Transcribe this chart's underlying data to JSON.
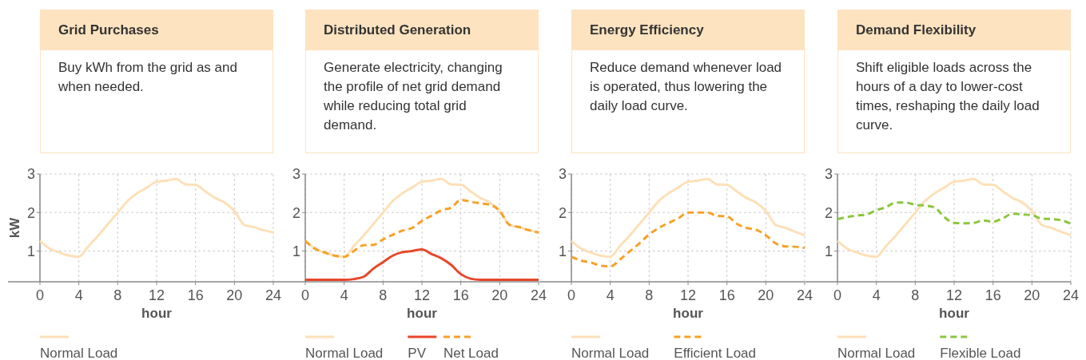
{
  "chart_data": [
    {
      "type": "line",
      "title": "Grid Purchases",
      "subtitle": "Buy kWh from the grid as and when needed.",
      "xlabel": "hour",
      "ylabel": "kW",
      "x": [
        0,
        1,
        2,
        3,
        4,
        5,
        6,
        7,
        8,
        9,
        10,
        11,
        12,
        13,
        14,
        15,
        16,
        17,
        18,
        19,
        20,
        21,
        22,
        23,
        24
      ],
      "xlim": [
        0,
        24
      ],
      "xticks": [
        0,
        4,
        8,
        12,
        16,
        20,
        24
      ],
      "ylim": [
        0.2,
        3
      ],
      "yticks": [
        1,
        2,
        3
      ],
      "grid": true,
      "legend": "bottom",
      "series": [
        {
          "name": "Normal Load",
          "color": "#fde0b8",
          "line_style": "solid",
          "values": [
            1.26,
            1.06,
            0.96,
            0.88,
            0.85,
            1.13,
            1.4,
            1.7,
            2.0,
            2.3,
            2.5,
            2.65,
            2.8,
            2.83,
            2.87,
            2.73,
            2.72,
            2.55,
            2.38,
            2.26,
            2.04,
            1.68,
            1.62,
            1.54,
            1.48
          ]
        }
      ]
    },
    {
      "type": "line",
      "title": "Distributed Generation",
      "subtitle": "Generate electricity, changing the profile of net grid demand while reducing total grid demand.",
      "xlabel": "hour",
      "x": [
        0,
        1,
        2,
        3,
        4,
        5,
        6,
        7,
        8,
        9,
        10,
        11,
        12,
        13,
        14,
        15,
        16,
        17,
        18,
        19,
        20,
        21,
        22,
        23,
        24
      ],
      "xlim": [
        0,
        24
      ],
      "xticks": [
        0,
        4,
        8,
        12,
        16,
        20,
        24
      ],
      "ylim": [
        0.2,
        3
      ],
      "yticks": [
        1,
        2,
        3
      ],
      "grid": true,
      "legend": "bottom",
      "series": [
        {
          "name": "Normal Load",
          "color": "#fde0b8",
          "line_style": "solid",
          "values": [
            1.26,
            1.06,
            0.96,
            0.88,
            0.85,
            1.13,
            1.4,
            1.7,
            2.0,
            2.3,
            2.5,
            2.65,
            2.8,
            2.83,
            2.87,
            2.73,
            2.72,
            2.55,
            2.38,
            2.26,
            2.04,
            1.68,
            1.62,
            1.54,
            1.48
          ]
        },
        {
          "name": "PV",
          "color": "#e8472b",
          "line_style": "solid",
          "values": [
            0.25,
            0.25,
            0.25,
            0.25,
            0.25,
            0.27,
            0.33,
            0.54,
            0.71,
            0.88,
            0.97,
            1.0,
            1.04,
            0.92,
            0.81,
            0.64,
            0.4,
            0.28,
            0.25,
            0.25,
            0.25,
            0.25,
            0.25,
            0.25,
            0.25
          ]
        },
        {
          "name": "Net Load",
          "color": "#f7a128",
          "line_style": "dashed",
          "values": [
            1.26,
            1.06,
            0.96,
            0.88,
            0.85,
            1.0,
            1.15,
            1.16,
            1.3,
            1.42,
            1.53,
            1.6,
            1.78,
            1.92,
            2.06,
            2.12,
            2.33,
            2.28,
            2.24,
            2.2,
            2.04,
            1.68,
            1.62,
            1.54,
            1.48
          ]
        }
      ]
    },
    {
      "type": "line",
      "title": "Energy Efficiency",
      "subtitle": "Reduce demand whenever load is operated, thus lowering the daily load curve.",
      "xlabel": "hour",
      "x": [
        0,
        1,
        2,
        3,
        4,
        5,
        6,
        7,
        8,
        9,
        10,
        11,
        12,
        13,
        14,
        15,
        16,
        17,
        18,
        19,
        20,
        21,
        22,
        23,
        24
      ],
      "xlim": [
        0,
        24
      ],
      "xticks": [
        0,
        4,
        8,
        12,
        16,
        20,
        24
      ],
      "ylim": [
        0.2,
        3
      ],
      "yticks": [
        1,
        2,
        3
      ],
      "grid": true,
      "legend": "bottom",
      "series": [
        {
          "name": "Normal Load",
          "color": "#fde0b8",
          "line_style": "solid",
          "values": [
            1.26,
            1.06,
            0.96,
            0.88,
            0.85,
            1.13,
            1.4,
            1.7,
            2.0,
            2.3,
            2.5,
            2.65,
            2.8,
            2.83,
            2.87,
            2.73,
            2.72,
            2.55,
            2.38,
            2.26,
            2.04,
            1.68,
            1.6,
            1.5,
            1.41
          ]
        },
        {
          "name": "Efficient Load",
          "color": "#f7a128",
          "line_style": "dashed",
          "values": [
            0.85,
            0.75,
            0.7,
            0.62,
            0.6,
            0.78,
            0.99,
            1.2,
            1.43,
            1.6,
            1.73,
            1.85,
            2.0,
            2.0,
            2.0,
            1.91,
            1.9,
            1.71,
            1.6,
            1.55,
            1.41,
            1.2,
            1.12,
            1.11,
            1.08
          ]
        }
      ]
    },
    {
      "type": "line",
      "title": "Demand Flexibility",
      "subtitle": "Shift eligible loads across the hours of a day to lower-cost times, reshaping the daily load curve.",
      "xlabel": "hour",
      "x": [
        0,
        1,
        2,
        3,
        4,
        5,
        6,
        7,
        8,
        9,
        10,
        11,
        12,
        13,
        14,
        15,
        16,
        17,
        18,
        19,
        20,
        21,
        22,
        23,
        24
      ],
      "xlim": [
        0,
        24
      ],
      "xticks": [
        0,
        4,
        8,
        12,
        16,
        20,
        24
      ],
      "ylim": [
        0.2,
        3
      ],
      "yticks": [
        1,
        2,
        3
      ],
      "grid": true,
      "legend": "bottom",
      "series": [
        {
          "name": "Normal Load",
          "color": "#fde0b8",
          "line_style": "solid",
          "values": [
            1.26,
            1.06,
            0.96,
            0.88,
            0.85,
            1.13,
            1.4,
            1.7,
            2.0,
            2.3,
            2.5,
            2.65,
            2.8,
            2.83,
            2.87,
            2.73,
            2.72,
            2.55,
            2.38,
            2.26,
            2.04,
            1.68,
            1.6,
            1.5,
            1.41
          ]
        },
        {
          "name": "Flexible Load",
          "color": "#8cc63f",
          "line_style": "dashed",
          "values": [
            1.83,
            1.88,
            1.92,
            1.95,
            2.06,
            2.14,
            2.26,
            2.26,
            2.2,
            2.18,
            2.13,
            1.88,
            1.73,
            1.72,
            1.73,
            1.79,
            1.76,
            1.85,
            1.97,
            1.95,
            1.93,
            1.84,
            1.83,
            1.8,
            1.71
          ]
        }
      ]
    }
  ]
}
